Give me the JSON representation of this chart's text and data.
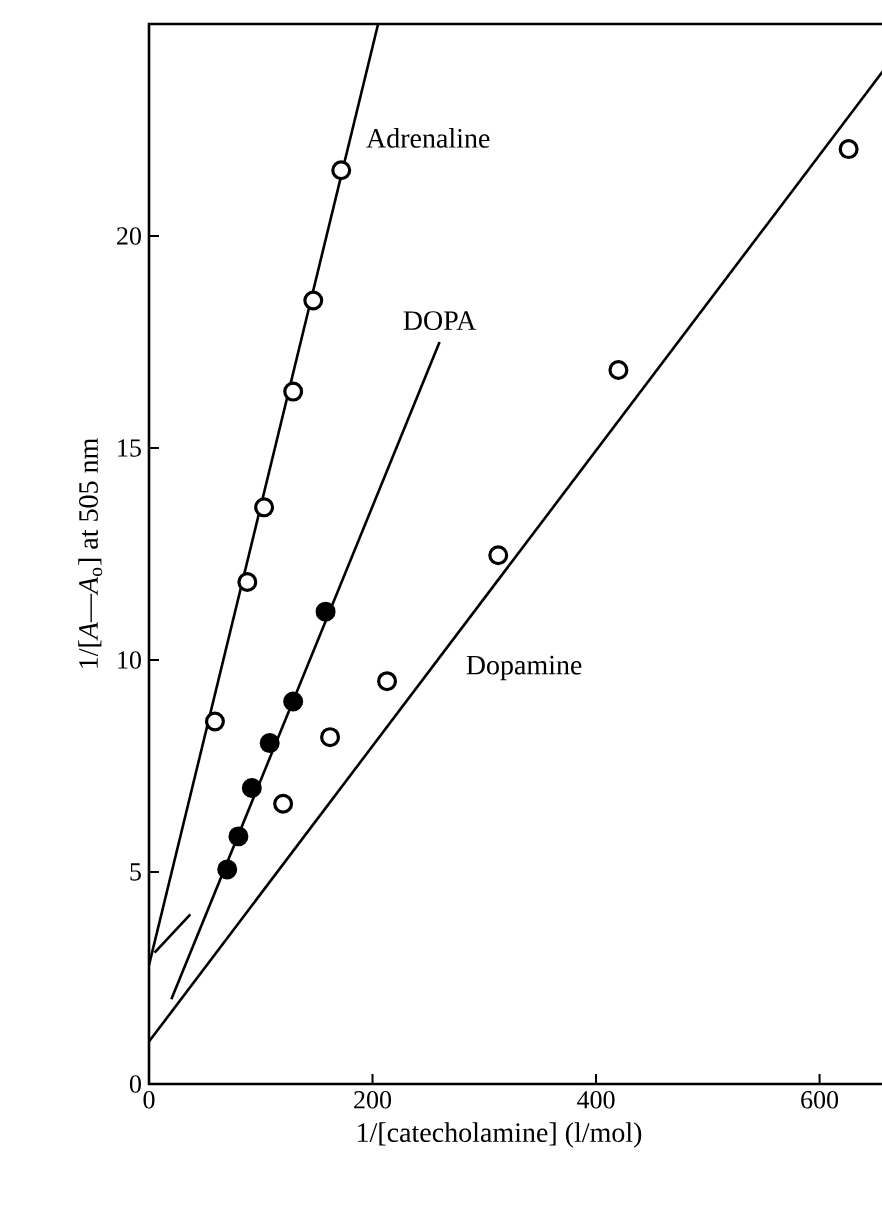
{
  "chart_data": {
    "type": "scatter",
    "xlabel": "1/[catecholamine] (l/mol)",
    "ylabel": "1/[*A*—*A*$_{o}$] at 505 nm",
    "xlim": [
      0,
      680
    ],
    "ylim": [
      0,
      25
    ],
    "xticks": [
      0,
      200,
      400,
      600
    ],
    "yticks": [
      0,
      5,
      10,
      15,
      20
    ],
    "grid": false,
    "series": [
      {
        "marker": "circle",
        "color": "#ffffff",
        "x": [
          59,
          88,
          103,
          129,
          147,
          172
        ],
        "values": [
          8.55,
          11.84,
          13.6,
          16.33,
          18.48,
          21.55
        ]
      },
      {
        "marker": "circle",
        "color": "#000000",
        "x": [
          70,
          80,
          92,
          108,
          129,
          158
        ],
        "values": [
          5.06,
          5.84,
          6.98,
          8.04,
          9.02,
          11.14
        ]
      },
      {
        "marker": "circle",
        "color": "#ffffff",
        "x": [
          120,
          162,
          213,
          312.5,
          420,
          626
        ],
        "values": [
          6.61,
          8.18,
          9.5,
          12.47,
          16.84,
          22.05
        ]
      },
      {
        "type": "line",
        "name": "Adrenaline",
        "color": "#000000",
        "marker": "none",
        "x": [
          0,
          205
        ],
        "values": [
          2.8,
          25
        ]
      },
      {
        "type": "line",
        "name": "DOPA",
        "color": "#000000",
        "marker": "none",
        "x": [
          20,
          260
        ],
        "values": [
          2.0,
          17.5
        ]
      },
      {
        "type": "line",
        "name": "Dopamine",
        "color": "#000000",
        "marker": "none",
        "x": [
          0,
          680
        ],
        "values": [
          1.0,
          24.7
        ]
      },
      {
        "type": "line",
        "color": "#000000",
        "marker": "none",
        "x": [
          5,
          37
        ],
        "values": [
          3.1,
          4.0
        ]
      }
    ]
  }
}
